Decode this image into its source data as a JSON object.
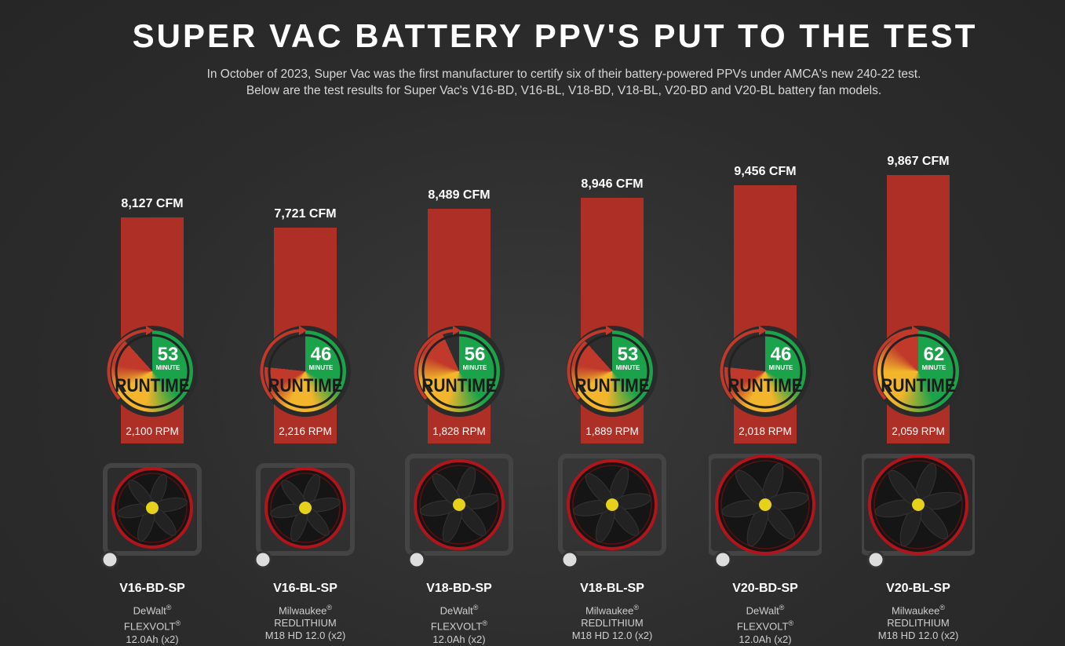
{
  "header": {
    "title": "SUPER VAC BATTERY PPV'S PUT TO THE TEST",
    "subtitle_lines": [
      "In October of 2023, Super Vac was the first manufacturer to certify six of their battery-powered PPVs under AMCA's new 240-22 test.",
      "Below are the test results for Super Vac's V16-BD, V16-BL, V18-BD, V18-BL, V20-BD and V20-BL battery fan models."
    ]
  },
  "colors": {
    "bar": "#ad2f26",
    "green": "#1aa34a",
    "yellow": "#f2b52b",
    "red": "#c0392b",
    "background": "#2c2c2c"
  },
  "chart_data": {
    "type": "bar",
    "categories": [
      "V16-BD-SP",
      "V16-BL-SP",
      "V18-BD-SP",
      "V18-BL-SP",
      "V20-BD-SP",
      "V20-BL-SP"
    ],
    "series": [
      {
        "name": "CFM",
        "values": [
          8127,
          7721,
          8489,
          8946,
          9456,
          9867
        ],
        "labels": [
          "8,127 CFM",
          "7,721 CFM",
          "8,489 CFM",
          "8,946 CFM",
          "9,456 CFM",
          "9,867 CFM"
        ]
      },
      {
        "name": "MINUTE RUNTIME",
        "values": [
          53,
          46,
          56,
          53,
          46,
          62
        ]
      },
      {
        "name": "RPM",
        "values": [
          2100,
          2216,
          1828,
          1889,
          2018,
          2059
        ],
        "labels": [
          "2,100 RPM",
          "2,216 RPM",
          "1,828 RPM",
          "1,889 RPM",
          "2,018 RPM",
          "2,059 RPM"
        ]
      }
    ],
    "gauge_text": {
      "unit": "MINUTE",
      "label": "RUNTIME"
    },
    "batteries": [
      [
        "DeWalt®",
        "FLEXVOLT®",
        "12.0Ah (x2)"
      ],
      [
        "Milwaukee®",
        "REDLITHIUM",
        "M18 HD 12.0 (x2)"
      ],
      [
        "DeWalt®",
        "FLEXVOLT®",
        "12.0Ah (x2)"
      ],
      [
        "Milwaukee®",
        "REDLITHIUM",
        "M18 HD 12.0 (x2)"
      ],
      [
        "DeWalt®",
        "FLEXVOLT®",
        "12.0Ah (x2)"
      ],
      [
        "Milwaukee®",
        "REDLITHIUM",
        "M18 HD 12.0 (x2)"
      ]
    ],
    "fan_sizes": [
      16,
      16,
      18,
      18,
      20,
      20
    ]
  }
}
